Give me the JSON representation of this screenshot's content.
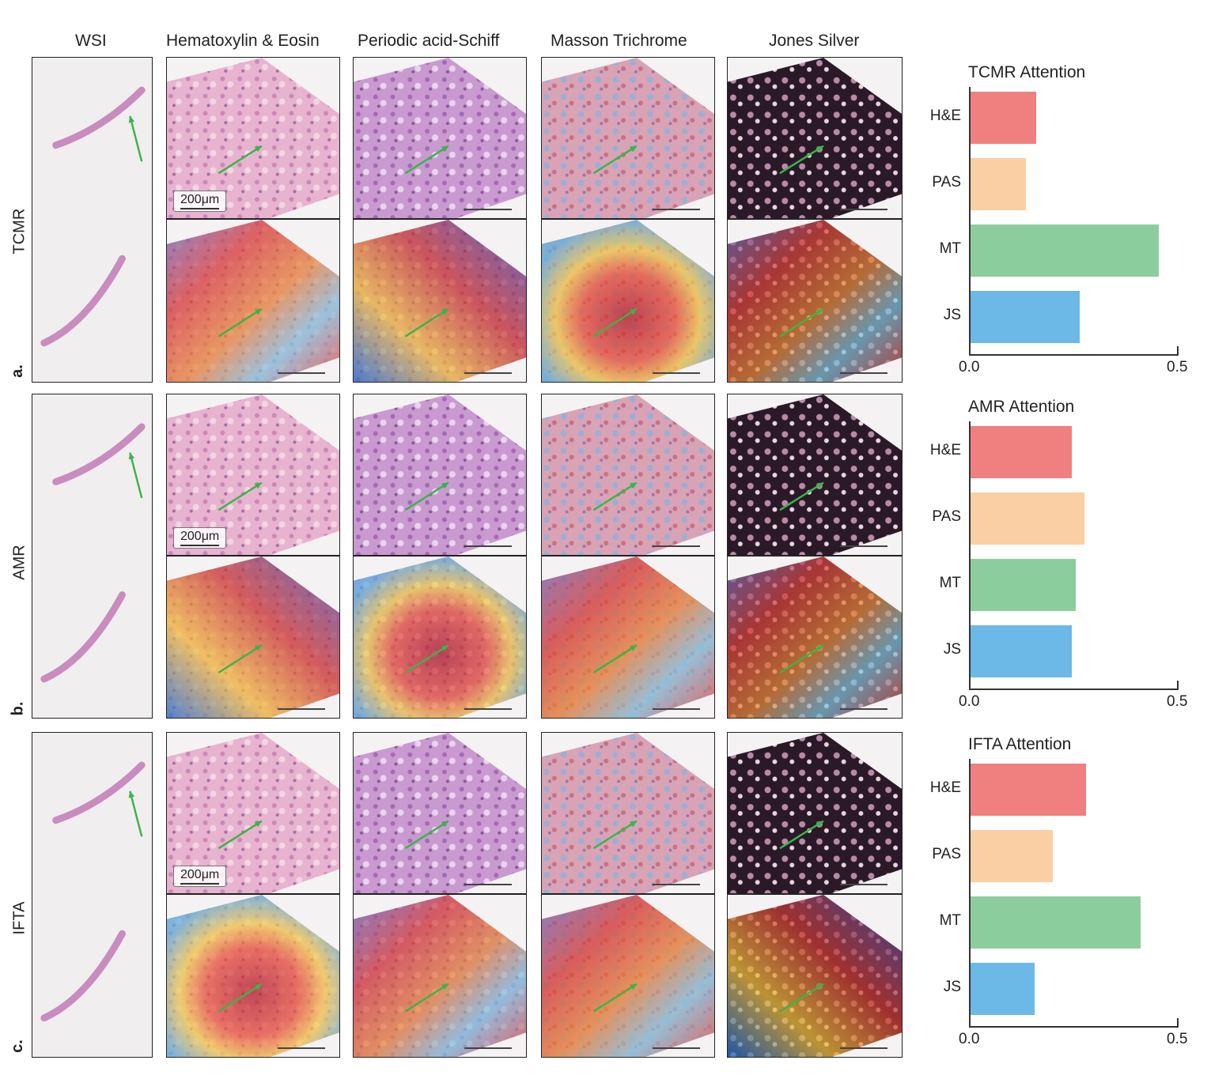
{
  "columns": [
    "WSI",
    "Hematoxylin & Eosin",
    "Periodic acid-Schiff",
    "Masson Trichrome",
    "Jones Silver"
  ],
  "rows": [
    {
      "letter": "a.",
      "label": "TCMR",
      "scale_text": "200μm"
    },
    {
      "letter": "b.",
      "label": "AMR",
      "scale_text": "200μm"
    },
    {
      "letter": "c.",
      "label": "IFTA",
      "scale_text": "200μm"
    }
  ],
  "colors": {
    "HE": "#f07f7f",
    "PAS": "#f9cfa3",
    "MT": "#8ccd9e",
    "JS": "#6cb8e6",
    "arrow": "#3cb34a"
  },
  "chart_data": [
    {
      "type": "bar",
      "orientation": "horizontal",
      "title": "TCMR Attention",
      "categories": [
        "H&E",
        "PAS",
        "MT",
        "JS"
      ],
      "values": [
        0.16,
        0.135,
        0.455,
        0.265
      ],
      "xlim": [
        0,
        0.5
      ],
      "xticks": [
        "0.0",
        "0.5"
      ]
    },
    {
      "type": "bar",
      "orientation": "horizontal",
      "title": "AMR Attention",
      "categories": [
        "H&E",
        "PAS",
        "MT",
        "JS"
      ],
      "values": [
        0.245,
        0.275,
        0.255,
        0.245
      ],
      "xlim": [
        0,
        0.5
      ],
      "xticks": [
        "0.0",
        "0.5"
      ]
    },
    {
      "type": "bar",
      "orientation": "horizontal",
      "title": "IFTA Attention",
      "categories": [
        "H&E",
        "PAS",
        "MT",
        "JS"
      ],
      "values": [
        0.28,
        0.2,
        0.41,
        0.155
      ],
      "xlim": [
        0,
        0.5
      ],
      "xticks": [
        "0.0",
        "0.5"
      ]
    }
  ]
}
